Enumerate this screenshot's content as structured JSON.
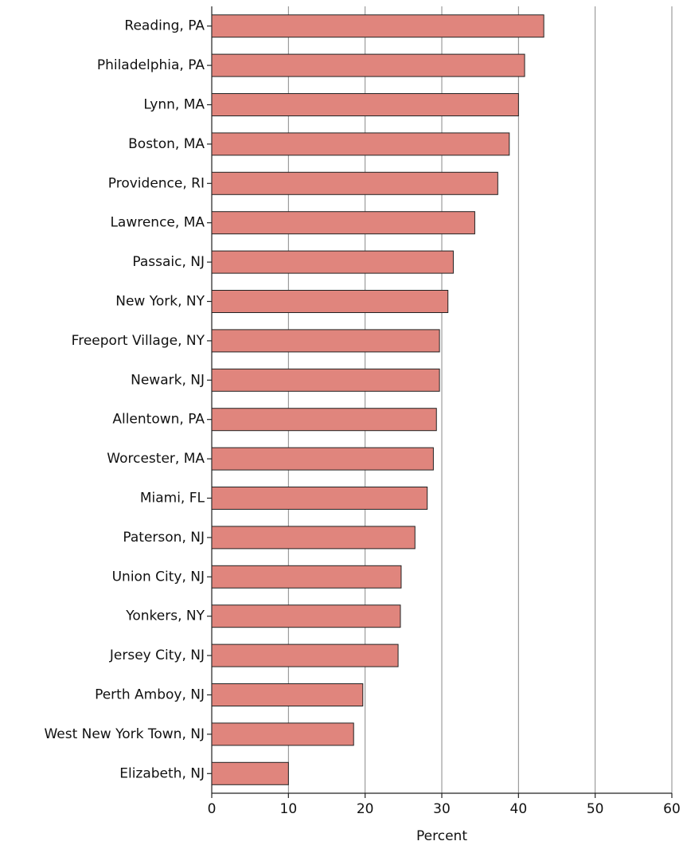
{
  "chart_data": {
    "type": "bar",
    "orientation": "horizontal",
    "xlabel": "Percent",
    "categories": [
      "Reading, PA",
      "Philadelphia, PA",
      "Lynn, MA",
      "Boston, MA",
      "Providence, RI",
      "Lawrence, MA",
      "Passaic, NJ",
      "New York, NY",
      "Freeport Village, NY",
      "Newark, NJ",
      "Allentown, PA",
      "Worcester, MA",
      "Miami, FL",
      "Paterson, NJ",
      "Union City, NJ",
      "Yonkers, NY",
      "Jersey City, NJ",
      "Perth Amboy, NJ",
      "West New York Town, NJ",
      "Elizabeth, NJ"
    ],
    "values": [
      43.3,
      40.8,
      40.0,
      38.8,
      37.3,
      34.3,
      31.5,
      30.8,
      29.7,
      29.7,
      29.3,
      28.9,
      28.1,
      26.5,
      24.7,
      24.6,
      24.3,
      19.7,
      18.5,
      10.0
    ],
    "color": "#e0857d",
    "xlim": [
      0,
      60
    ],
    "xticks": [
      0,
      10,
      20,
      30,
      40,
      50,
      60
    ],
    "grid": true
  }
}
